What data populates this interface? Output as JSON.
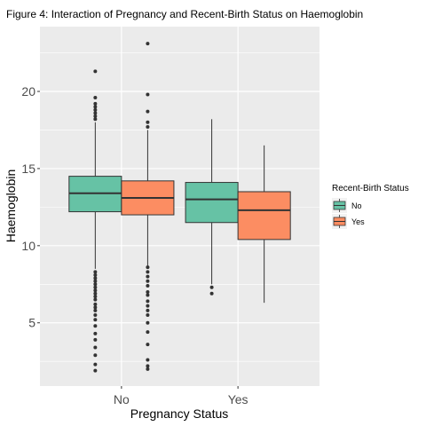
{
  "chart_data": {
    "type": "box",
    "title": "Figure 4: Interaction of Pregnancy and Recent-Birth Status on Haemoglobin",
    "xlabel": "Pregnancy Status",
    "ylabel": "Haemoglobin",
    "categories": [
      "No",
      "Yes"
    ],
    "y_ticks": [
      5,
      10,
      15,
      20
    ],
    "ylim": [
      0.9,
      24.2
    ],
    "grid": true,
    "legend": {
      "title": "Recent-Birth Status",
      "placement": "right",
      "entries": [
        "No",
        "Yes"
      ]
    },
    "series": [
      {
        "name": "No",
        "color": "#66C2A5",
        "boxes": [
          {
            "category": "No",
            "whisker_low": 8.5,
            "q1": 12.2,
            "median": 13.4,
            "q3": 14.5,
            "whisker_high": 18.0,
            "outliers": [
              18.2,
              18.4,
              18.6,
              18.8,
              19.0,
              19.2,
              19.6,
              21.3,
              8.3,
              8.1,
              7.9,
              7.7,
              7.5,
              7.3,
              7.1,
              6.9,
              6.7,
              6.5,
              6.2,
              6.0,
              5.8,
              5.5,
              5.2,
              4.8,
              4.3,
              3.9,
              3.4,
              2.9,
              2.3,
              1.9
            ]
          },
          {
            "category": "Yes",
            "whisker_low": 7.5,
            "q1": 11.5,
            "median": 13.0,
            "q3": 14.1,
            "whisker_high": 18.2,
            "outliers": [
              7.3,
              6.9
            ]
          }
        ]
      },
      {
        "name": "Yes",
        "color": "#FC8D62",
        "boxes": [
          {
            "category": "No",
            "whisker_low": 8.7,
            "q1": 12.0,
            "median": 13.1,
            "q3": 14.2,
            "whisker_high": 17.5,
            "outliers": [
              17.7,
              18.0,
              18.7,
              19.8,
              23.1,
              8.6,
              8.3,
              8.0,
              7.7,
              7.4,
              7.0,
              6.8,
              6.4,
              6.1,
              5.8,
              5.5,
              5.0,
              4.4,
              3.6,
              2.6,
              2.2,
              2.0
            ]
          },
          {
            "category": "Yes",
            "whisker_low": 6.3,
            "q1": 10.4,
            "median": 12.3,
            "q3": 13.5,
            "whisker_high": 16.5,
            "outliers": []
          }
        ]
      }
    ]
  }
}
